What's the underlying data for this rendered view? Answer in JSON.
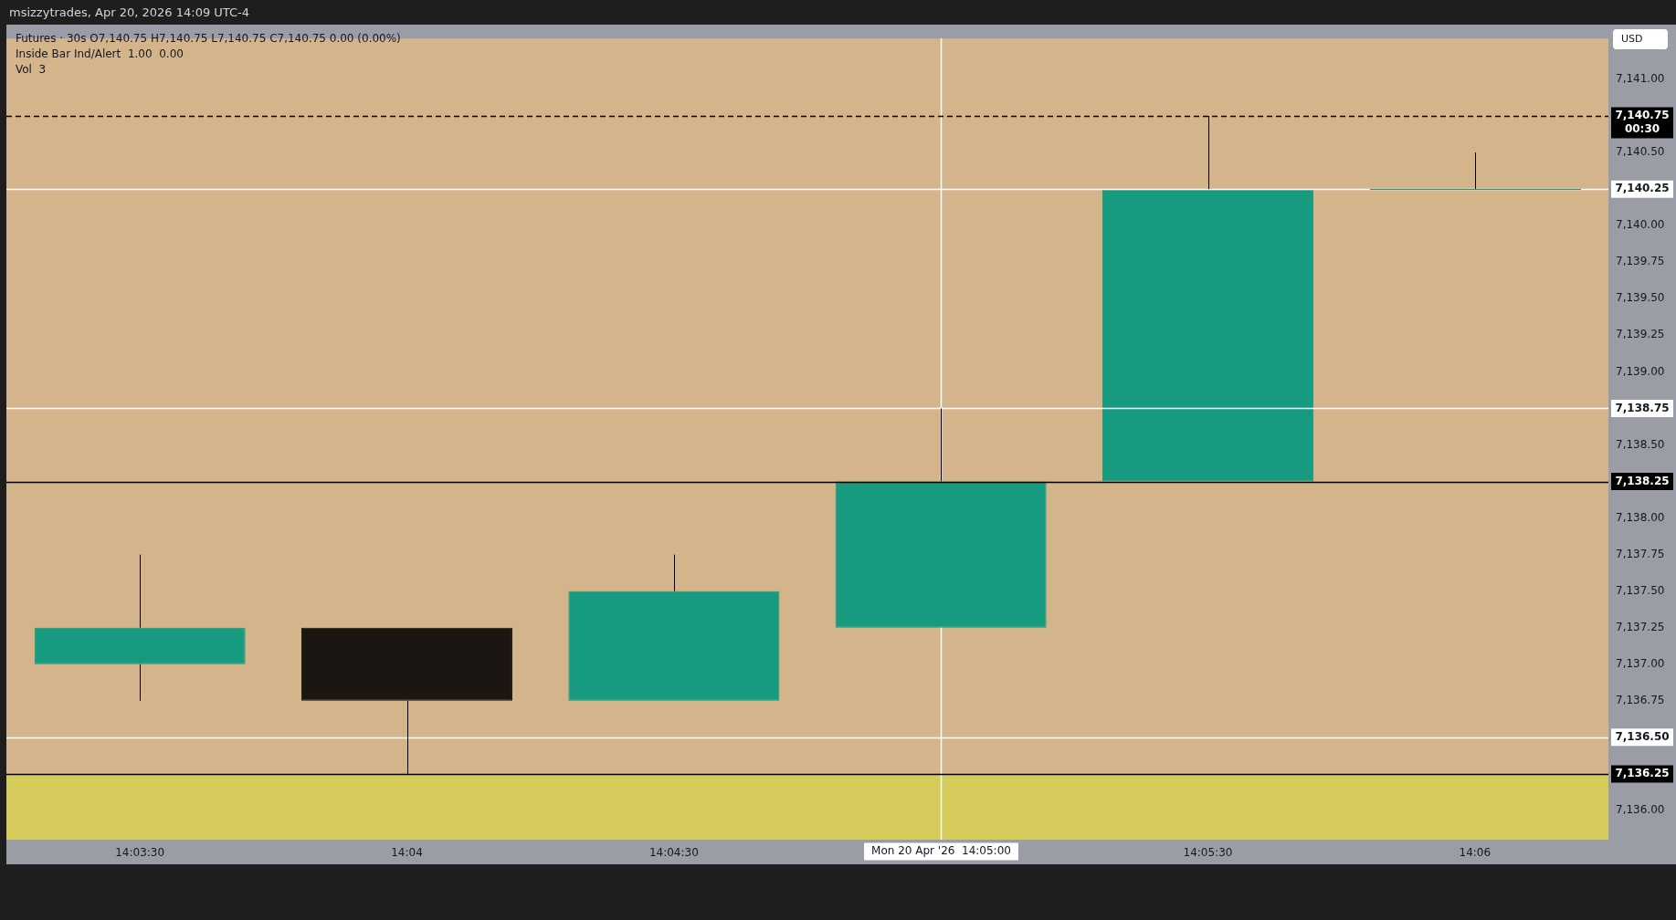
{
  "chart_data": {
    "type": "candlestick",
    "title": "Futures · 30s  O7,140.75  H7,140.75  L7,140.75  C7,140.75  0.00 (0.00%)",
    "subtitle": "msizzytrades, Apr 20, 2026 14:09 UTC-4",
    "ylabel": "USD",
    "annotations": [
      "Inside Bar Ind/Alert  1.00  0.00",
      "Vol  3"
    ],
    "categories": [
      "14:03:30",
      "14:04",
      "14:04:30",
      "Mon 20 Apr '26  14:05:00",
      "14:05:30",
      "14:06"
    ],
    "ohlc": [
      [
        7137.0,
        7137.75,
        7136.75,
        7137.25
      ],
      [
        7137.25,
        7137.25,
        7136.25,
        7136.75
      ],
      [
        7136.75,
        7137.75,
        7136.75,
        7137.5
      ],
      [
        7137.25,
        7138.75,
        7137.25,
        7138.25
      ],
      [
        7138.25,
        7140.75,
        7138.25,
        7140.25
      ],
      [
        7140.25,
        7140.5,
        7140.25,
        7140.25
      ]
    ],
    "colors": [
      "#179b80",
      "#1c1612",
      "#179b80",
      "#179b80",
      "#179b80",
      "#179b80"
    ],
    "ylim": [
      7135.8,
      7141.28
    ],
    "yticks": [
      {
        "value": 7136,
        "label": "7,136.00"
      },
      {
        "value": 7136.75,
        "label": "7,136.75"
      },
      {
        "value": 7137,
        "label": "7,137.00"
      },
      {
        "value": 7137.25,
        "label": "7,137.25"
      },
      {
        "value": 7137.5,
        "label": "7,137.50"
      },
      {
        "value": 7137.75,
        "label": "7,137.75"
      },
      {
        "value": 7138,
        "label": "7,138.00"
      },
      {
        "value": 7138.5,
        "label": "7,138.50"
      },
      {
        "value": 7139,
        "label": "7,139.00"
      },
      {
        "value": 7139.25,
        "label": "7,139.25"
      },
      {
        "value": 7139.5,
        "label": "7,139.50"
      },
      {
        "value": 7139.75,
        "label": "7,139.75"
      },
      {
        "value": 7140,
        "label": "7,140.00"
      },
      {
        "value": 7140.5,
        "label": "7,140.50"
      },
      {
        "value": 7141,
        "label": "7,141.00"
      }
    ],
    "ref_lines": [
      {
        "axis": "y",
        "value": 7140.75,
        "label": "7,140.75\n00:30",
        "color": "#000000",
        "line_style": "dashed"
      },
      {
        "axis": "y",
        "value": 7140.25,
        "label": "7,140.25",
        "color": "#ffffff"
      },
      {
        "axis": "y",
        "value": 7138.75,
        "label": "7,138.75",
        "color": "#ffffff"
      },
      {
        "axis": "y",
        "value": 7138.25,
        "label": "7,138.25",
        "color": "#000000"
      },
      {
        "axis": "y",
        "value": 7136.5,
        "label": "7,136.50",
        "color": "#ffffff"
      },
      {
        "axis": "y",
        "value": 7136.25,
        "label": "7,136.25",
        "color": "#000000"
      },
      {
        "axis": "x",
        "value": "Mon 20 Apr '26  14:05:00",
        "color": "#ffffff"
      }
    ],
    "bands": [
      {
        "axis": "y",
        "from": 7135.8,
        "to": 7136.25,
        "color": "#d4cb5a"
      }
    ],
    "grid": false,
    "legend": false
  }
}
